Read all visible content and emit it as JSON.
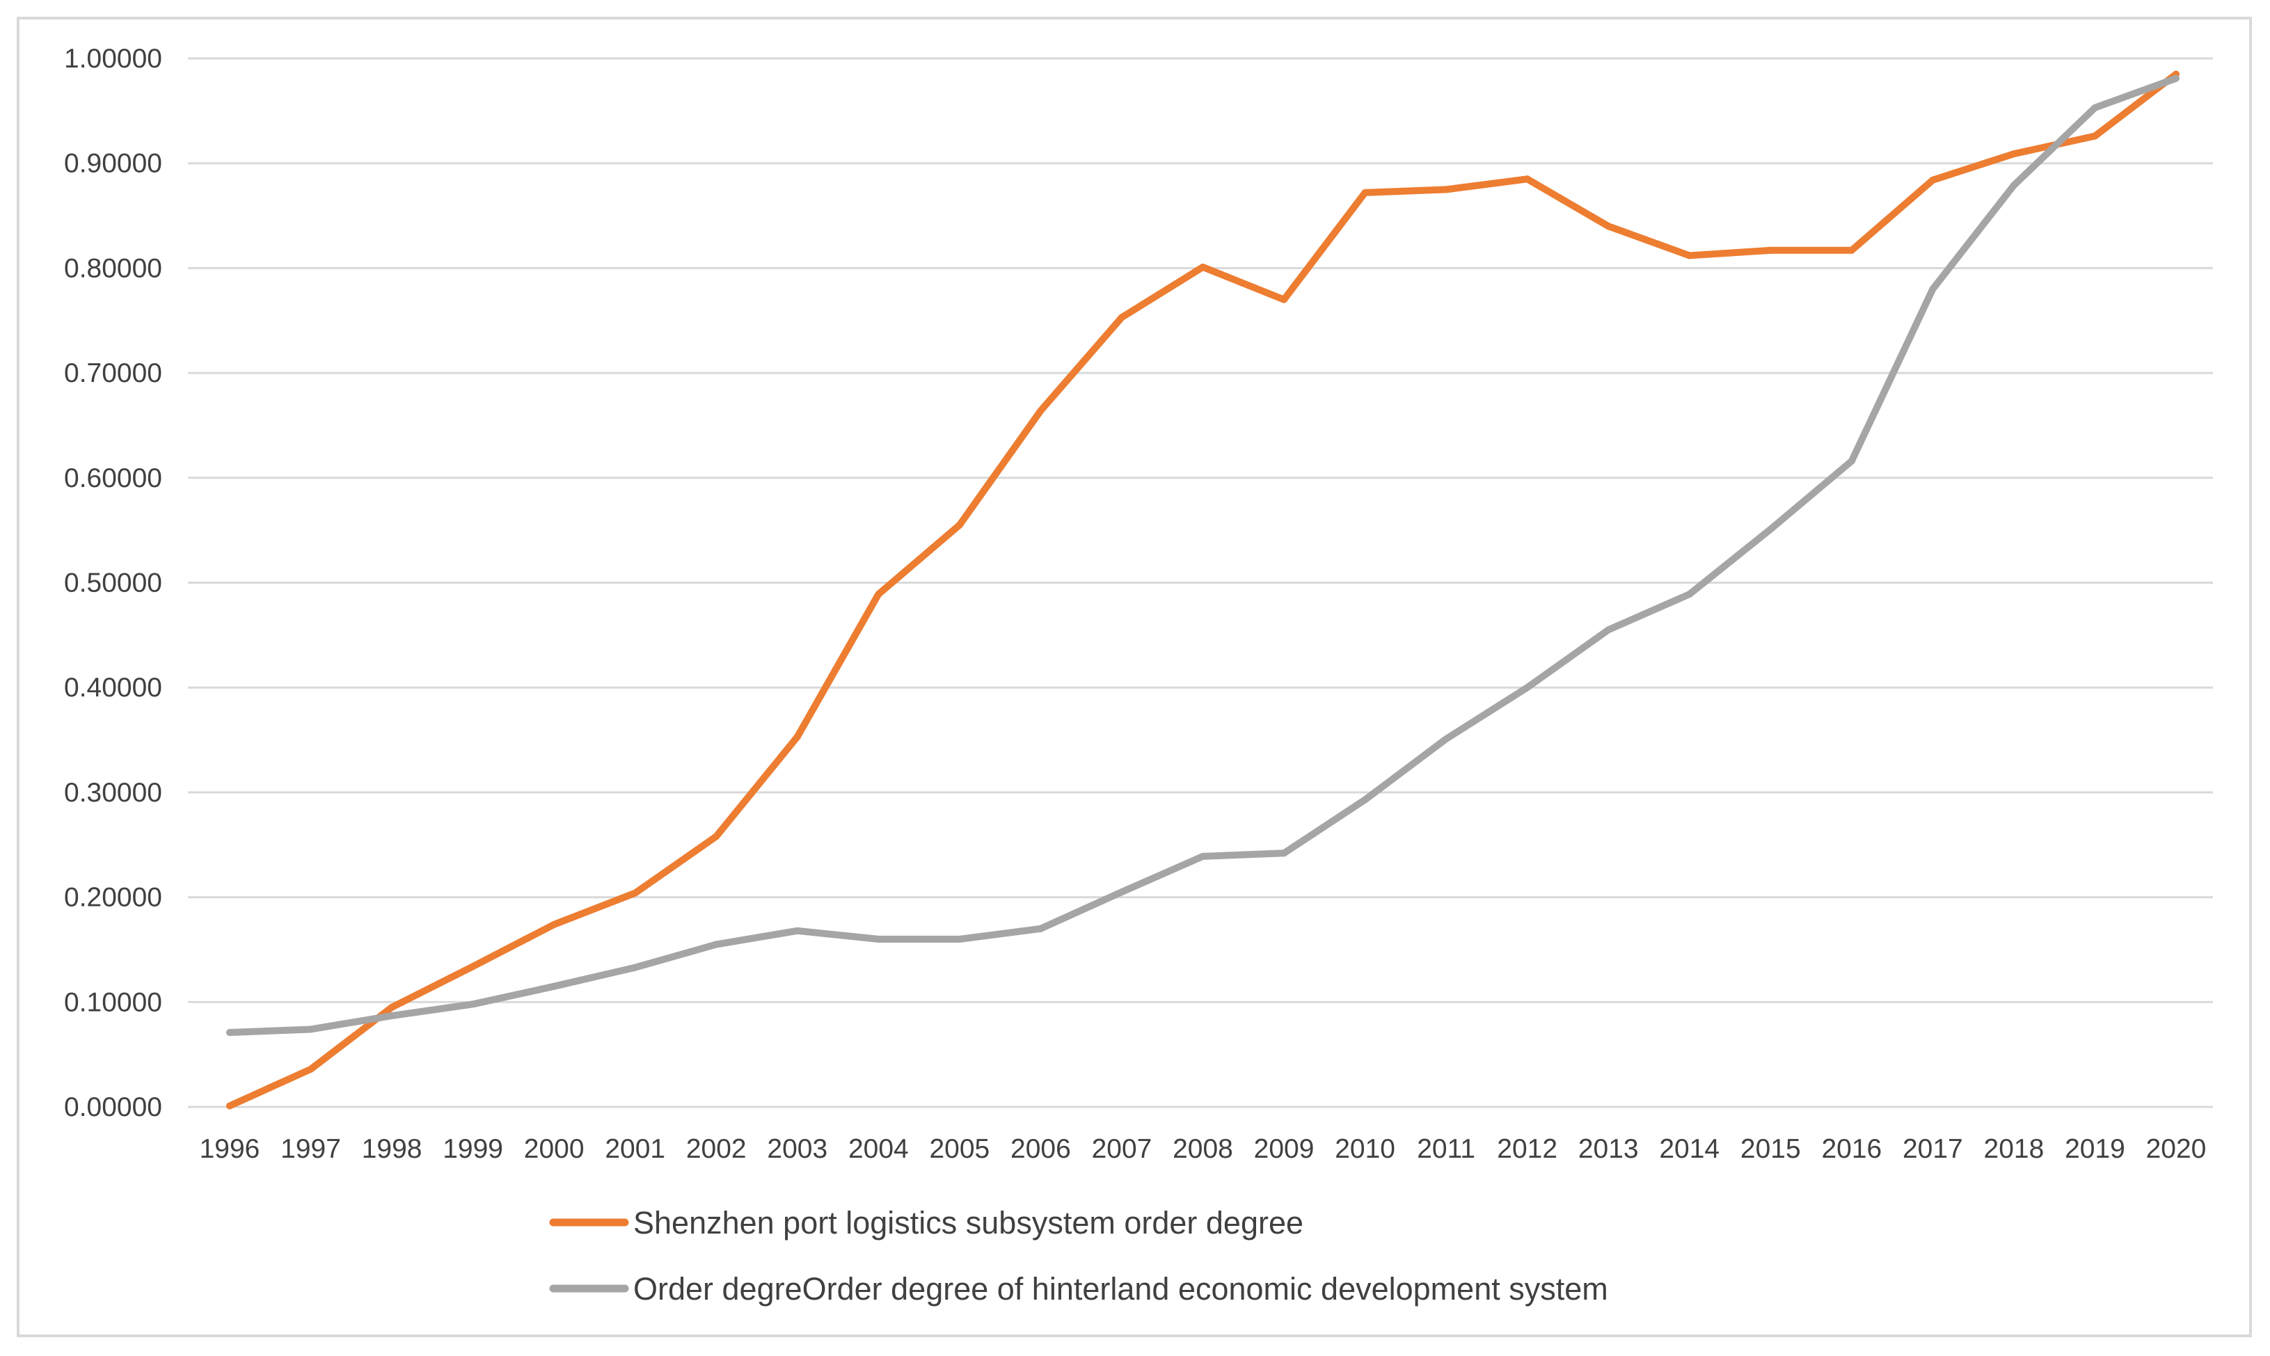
{
  "chart_data": {
    "type": "line",
    "title": "",
    "xlabel": "",
    "ylabel": "",
    "ylim": [
      0,
      1
    ],
    "yticks": [
      "0.00000",
      "0.10000",
      "0.20000",
      "0.30000",
      "0.40000",
      "0.50000",
      "0.60000",
      "0.70000",
      "0.80000",
      "0.90000",
      "1.00000"
    ],
    "categories": [
      "1996",
      "1997",
      "1998",
      "1999",
      "2000",
      "2001",
      "2002",
      "2003",
      "2004",
      "2005",
      "2006",
      "2007",
      "2008",
      "2009",
      "2010",
      "2011",
      "2012",
      "2013",
      "2014",
      "2015",
      "2016",
      "2017",
      "2018",
      "2019",
      "2020"
    ],
    "grid": true,
    "legend_position": "bottom",
    "series": [
      {
        "name": "Shenzhen port logistics subsystem order degree",
        "color": "#ed7d31",
        "values": [
          0.001,
          0.036,
          0.095,
          0.134,
          0.174,
          0.204,
          0.258,
          0.353,
          0.489,
          0.555,
          0.664,
          0.753,
          0.801,
          0.77,
          0.872,
          0.875,
          0.885,
          0.84,
          0.812,
          0.817,
          0.817,
          0.884,
          0.909,
          0.926,
          0.985
        ]
      },
      {
        "name": "Order degreOrder degree of hinterland economic development system",
        "color": "#a5a5a5",
        "values": [
          0.071,
          0.074,
          0.087,
          0.098,
          0.115,
          0.133,
          0.155,
          0.168,
          0.16,
          0.16,
          0.17,
          0.205,
          0.239,
          0.242,
          0.293,
          0.351,
          0.4,
          0.455,
          0.489,
          0.551,
          0.616,
          0.78,
          0.879,
          0.953,
          0.981
        ]
      }
    ]
  }
}
